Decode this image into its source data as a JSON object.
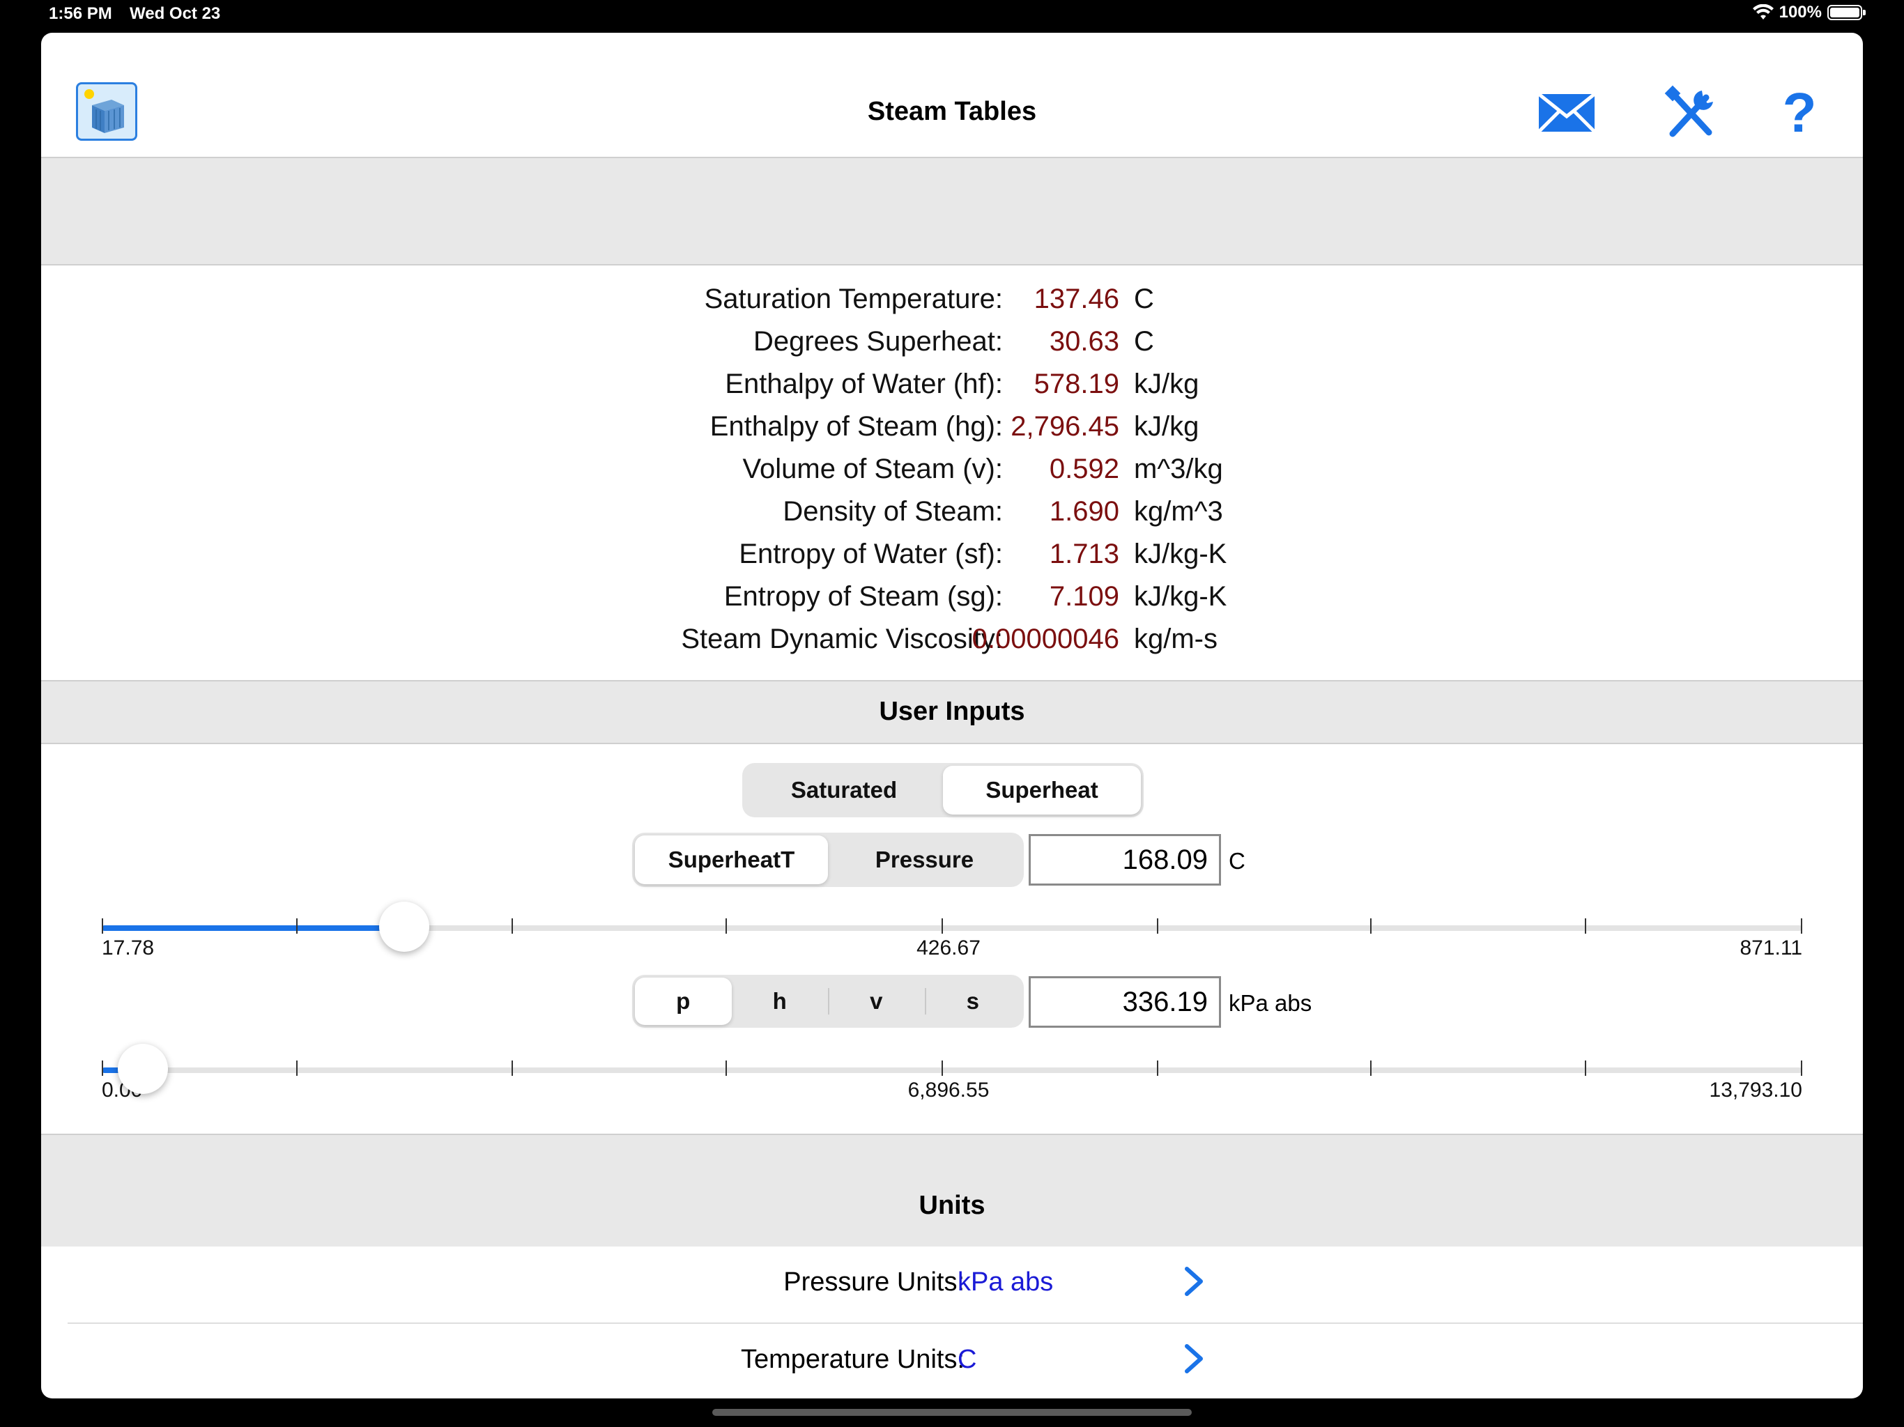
{
  "status_bar": {
    "time": "1:56 PM",
    "date": "Wed Oct 23",
    "battery": "100%"
  },
  "navbar": {
    "title": "Steam Tables",
    "icons": [
      "app-logo-icon",
      "mail-icon",
      "tools-icon",
      "help-icon"
    ],
    "help_glyph": "?"
  },
  "results": [
    {
      "label": "Saturation Temperature:",
      "value": "137.46",
      "unit": "C"
    },
    {
      "label": "Degrees Superheat:",
      "value": "30.63",
      "unit": "C"
    },
    {
      "label": "Enthalpy of Water (hf):",
      "value": "578.19",
      "unit": "kJ/kg"
    },
    {
      "label": "Enthalpy of Steam (hg):",
      "value": "2,796.45",
      "unit": "kJ/kg"
    },
    {
      "label": "Volume of Steam (v):",
      "value": "0.592",
      "unit": "m^3/kg"
    },
    {
      "label": "Density of Steam:",
      "value": "1.690",
      "unit": "kg/m^3"
    },
    {
      "label": "Entropy of Water (sf):",
      "value": "1.713",
      "unit": "kJ/kg-K"
    },
    {
      "label": "Entropy of Steam (sg):",
      "value": "7.109",
      "unit": "kJ/kg-K"
    },
    {
      "label": "Steam Dynamic Viscosity:",
      "value": "0.00000046",
      "unit": "kg/m-s"
    }
  ],
  "user_inputs": {
    "title": "User Inputs",
    "mode_segment": {
      "options": [
        "Saturated",
        "Superheat"
      ],
      "selected": "Superheat"
    },
    "temp_segment": {
      "options": [
        "SuperheatT",
        "Pressure"
      ],
      "selected": "SuperheatT"
    },
    "temp_input": {
      "value": "168.09",
      "unit": "C"
    },
    "temp_slider": {
      "min_label": "17.78",
      "mid_label": "426.67",
      "max_label": "871.11",
      "fraction": 0.178
    },
    "prop_segment": {
      "options": [
        "p",
        "h",
        "v",
        "s"
      ],
      "selected": "p"
    },
    "pressure_input": {
      "value": "336.19",
      "unit": "kPa abs"
    },
    "pressure_slider": {
      "min_label": "0.00",
      "mid_label": "6,896.55",
      "max_label": "13,793.10",
      "fraction": 0.024
    }
  },
  "units": {
    "title": "Units",
    "rows": [
      {
        "label": "Pressure Units:",
        "value": "kPa abs"
      },
      {
        "label": "Temperature Units:",
        "value": "C"
      }
    ]
  },
  "colors": {
    "accent": "#1a73e8",
    "result_value": "#7b0f0f",
    "unit_value": "#1a1ad6",
    "band": "#e8e8e8"
  }
}
